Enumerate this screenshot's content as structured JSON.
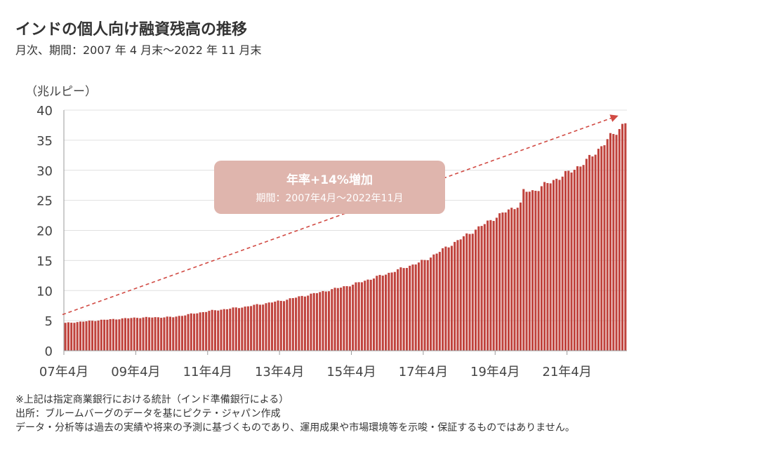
{
  "title": "インドの個人向け融資残高の推移",
  "subtitle": "月次、期間：2007 年 4 月末～2022 年 11 月末",
  "unit_label": "（兆ルピー）",
  "callout": {
    "main": "年率+14%増加",
    "sub": "期間：2007年4月～2022年11月"
  },
  "notes": [
    "※上記は指定商業銀行における統計（インド準備銀行による）",
    "出所：ブルームバーグのデータを基にピクテ・ジャパン作成",
    "データ・分析等は過去の実績や将来の予測に基づくものであり、運用成果や市場環境等を示唆・保証するものではありません。"
  ],
  "colors": {
    "bar": "#c0433d",
    "trend_arrow": "#d14a43",
    "callout_bg": "#dfb5ad",
    "grid": "#e0e0e0"
  },
  "chart_data": {
    "type": "bar",
    "title": "インドの個人向け融資残高の推移",
    "ylabel": "（兆ルピー）",
    "ylim": [
      0,
      40
    ],
    "yticks": [
      0,
      5,
      10,
      15,
      20,
      25,
      30,
      35,
      40
    ],
    "xticks": [
      "07年4月",
      "09年4月",
      "11年4月",
      "13年4月",
      "15年4月",
      "17年4月",
      "19年4月",
      "21年4月"
    ],
    "grid": true,
    "x_start": "2007-04",
    "x_end": "2022-11",
    "frequency": "monthly",
    "anchors": [
      [
        "2007-04",
        4.6
      ],
      [
        "2008-04",
        5.1
      ],
      [
        "2009-04",
        5.5
      ],
      [
        "2010-04",
        5.6
      ],
      [
        "2011-04",
        6.6
      ],
      [
        "2012-04",
        7.3
      ],
      [
        "2013-04",
        8.3
      ],
      [
        "2014-04",
        9.6
      ],
      [
        "2015-04",
        11.0
      ],
      [
        "2016-04",
        12.9
      ],
      [
        "2017-04",
        15.0
      ],
      [
        "2018-04",
        18.6
      ],
      [
        "2019-04",
        22.3
      ],
      [
        "2019-12",
        24.4
      ],
      [
        "2020-01",
        26.5
      ],
      [
        "2020-04",
        26.5
      ],
      [
        "2021-04",
        29.6
      ],
      [
        "2021-10",
        31.5
      ],
      [
        "2022-04",
        34.5
      ],
      [
        "2022-11",
        38.0
      ]
    ],
    "trend": {
      "label": "年率+14%増加",
      "start": [
        "2007-04",
        6.0
      ],
      "end": [
        "2022-11",
        39.0
      ]
    }
  }
}
